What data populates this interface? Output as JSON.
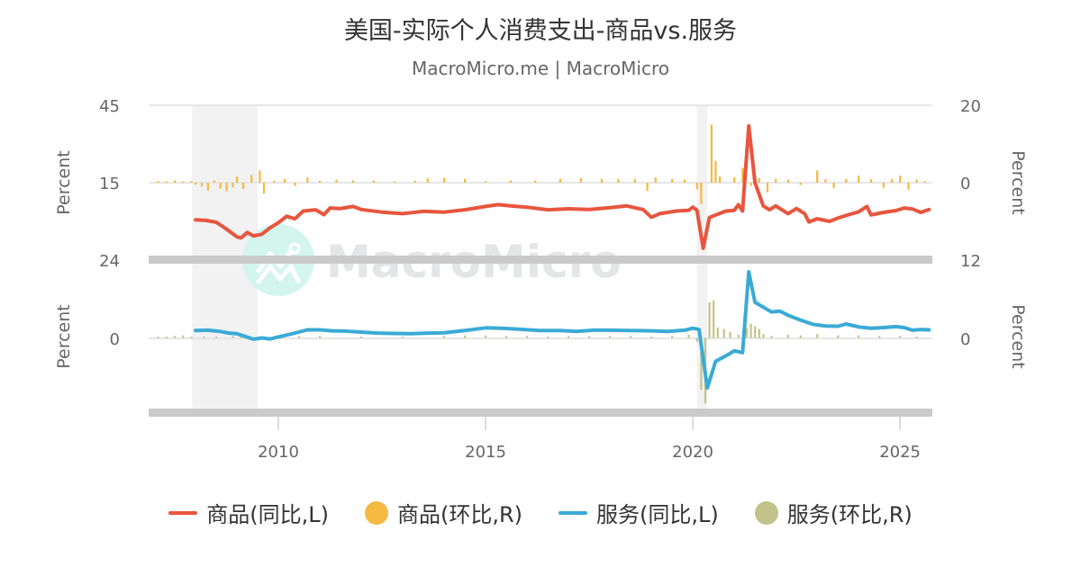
{
  "header": {
    "title": "美国-实际个人消费支出-商品vs.服务",
    "subtitle": "MacroMicro.me | MacroMicro"
  },
  "watermark": {
    "text": "MacroMicro",
    "circle_color": "#d4f5ee",
    "text_color": "#e3e5e6"
  },
  "legend": [
    {
      "label": "商品(同比,L)",
      "type": "line",
      "color": "#e8553e"
    },
    {
      "label": "商品(环比,R)",
      "type": "dot",
      "color": "#f5b941"
    },
    {
      "label": "服务(同比,L)",
      "type": "line",
      "color": "#3aaad6"
    },
    {
      "label": "服务(环比,R)",
      "type": "dot",
      "color": "#c2c38a"
    }
  ],
  "chart_data": [
    {
      "panel": "top",
      "type": "line+bar",
      "title": "美国-实际个人消费支出-商品",
      "left_axis": {
        "label": "Percent",
        "ticks": [
          "45",
          "15"
        ],
        "range": [
          -15,
          45
        ]
      },
      "right_axis": {
        "label": "Percent",
        "ticks": [
          "20",
          "0"
        ],
        "range": [
          -20,
          20
        ]
      },
      "series": [
        {
          "name": "商品(同比,L)",
          "type": "line",
          "color": "#e8553e",
          "axis": "left",
          "points": [
            [
              2008.0,
              0.6
            ],
            [
              2008.25,
              0.4
            ],
            [
              2008.5,
              -0.3
            ],
            [
              2008.75,
              -3.0
            ],
            [
              2009.0,
              -6.0
            ],
            [
              2009.1,
              -6.4
            ],
            [
              2009.25,
              -4.3
            ],
            [
              2009.4,
              -5.6
            ],
            [
              2009.6,
              -5.0
            ],
            [
              2009.8,
              -2.5
            ],
            [
              2010.0,
              -0.5
            ],
            [
              2010.2,
              2.0
            ],
            [
              2010.4,
              1.0
            ],
            [
              2010.6,
              4.0
            ],
            [
              2010.9,
              4.5
            ],
            [
              2011.1,
              2.6
            ],
            [
              2011.25,
              5.2
            ],
            [
              2011.5,
              5.0
            ],
            [
              2011.8,
              5.8
            ],
            [
              2012.0,
              4.6
            ],
            [
              2012.5,
              3.6
            ],
            [
              2013.0,
              3.0
            ],
            [
              2013.5,
              3.9
            ],
            [
              2014.0,
              3.6
            ],
            [
              2014.5,
              4.5
            ],
            [
              2015.0,
              5.8
            ],
            [
              2015.3,
              6.5
            ],
            [
              2015.6,
              6.0
            ],
            [
              2016.0,
              5.5
            ],
            [
              2016.5,
              4.5
            ],
            [
              2017.0,
              4.9
            ],
            [
              2017.5,
              4.6
            ],
            [
              2018.0,
              5.3
            ],
            [
              2018.4,
              6.0
            ],
            [
              2018.8,
              4.6
            ],
            [
              2019.0,
              1.6
            ],
            [
              2019.2,
              3.0
            ],
            [
              2019.6,
              4.0
            ],
            [
              2019.9,
              4.3
            ],
            [
              2020.0,
              5.5
            ],
            [
              2020.1,
              4.3
            ],
            [
              2020.25,
              -10.4
            ],
            [
              2020.4,
              1.5
            ],
            [
              2020.6,
              2.8
            ],
            [
              2020.8,
              4.0
            ],
            [
              2021.0,
              4.3
            ],
            [
              2021.1,
              6.5
            ],
            [
              2021.2,
              4.0
            ],
            [
              2021.35,
              37.0
            ],
            [
              2021.5,
              15.0
            ],
            [
              2021.7,
              6.0
            ],
            [
              2021.85,
              4.5
            ],
            [
              2022.0,
              6.0
            ],
            [
              2022.3,
              3.0
            ],
            [
              2022.5,
              5.0
            ],
            [
              2022.7,
              3.0
            ],
            [
              2022.8,
              -0.2
            ],
            [
              2023.0,
              1.0
            ],
            [
              2023.3,
              0.0
            ],
            [
              2023.5,
              1.3
            ],
            [
              2023.8,
              2.8
            ],
            [
              2024.0,
              3.7
            ],
            [
              2024.2,
              5.8
            ],
            [
              2024.3,
              2.5
            ],
            [
              2024.6,
              3.5
            ],
            [
              2024.9,
              4.2
            ],
            [
              2025.1,
              5.2
            ],
            [
              2025.3,
              4.8
            ],
            [
              2025.5,
              3.5
            ],
            [
              2025.7,
              4.6
            ]
          ]
        },
        {
          "name": "商品(环比,R)",
          "type": "bar",
          "color": "#f5b941",
          "axis": "right",
          "points": [
            [
              2007.1,
              0.4
            ],
            [
              2007.3,
              0.3
            ],
            [
              2007.5,
              0.6
            ],
            [
              2007.7,
              0.3
            ],
            [
              2007.9,
              0.4
            ],
            [
              2008.0,
              -0.5
            ],
            [
              2008.15,
              -1.0
            ],
            [
              2008.3,
              -2.0
            ],
            [
              2008.45,
              0.6
            ],
            [
              2008.6,
              -1.5
            ],
            [
              2008.75,
              -2.2
            ],
            [
              2008.9,
              -1.2
            ],
            [
              2009.0,
              1.6
            ],
            [
              2009.15,
              -1.6
            ],
            [
              2009.35,
              2.0
            ],
            [
              2009.55,
              3.2
            ],
            [
              2009.65,
              -2.8
            ],
            [
              2009.9,
              0.5
            ],
            [
              2010.15,
              1.0
            ],
            [
              2010.4,
              -0.8
            ],
            [
              2010.7,
              1.4
            ],
            [
              2011.0,
              0.5
            ],
            [
              2011.4,
              0.8
            ],
            [
              2011.8,
              0.6
            ],
            [
              2012.3,
              0.6
            ],
            [
              2012.8,
              0.3
            ],
            [
              2013.3,
              0.5
            ],
            [
              2013.6,
              1.2
            ],
            [
              2014.0,
              1.3
            ],
            [
              2014.5,
              1.0
            ],
            [
              2015.0,
              0.4
            ],
            [
              2015.6,
              0.6
            ],
            [
              2016.2,
              0.6
            ],
            [
              2016.8,
              1.0
            ],
            [
              2017.3,
              1.2
            ],
            [
              2017.8,
              1.0
            ],
            [
              2018.2,
              1.0
            ],
            [
              2018.6,
              1.0
            ],
            [
              2018.9,
              -2.1
            ],
            [
              2019.1,
              1.4
            ],
            [
              2019.5,
              1.0
            ],
            [
              2019.8,
              0.8
            ],
            [
              2020.1,
              -1.7
            ],
            [
              2020.2,
              -5.5
            ],
            [
              2020.45,
              15.0
            ],
            [
              2020.55,
              5.6
            ],
            [
              2020.65,
              1.6
            ],
            [
              2021.0,
              1.4
            ],
            [
              2021.2,
              3.8
            ],
            [
              2021.4,
              -0.8
            ],
            [
              2021.6,
              1.2
            ],
            [
              2021.8,
              -2.5
            ],
            [
              2022.0,
              1.0
            ],
            [
              2022.3,
              0.8
            ],
            [
              2022.6,
              -0.6
            ],
            [
              2023.0,
              3.2
            ],
            [
              2023.2,
              0.9
            ],
            [
              2023.4,
              -1.4
            ],
            [
              2023.7,
              1.0
            ],
            [
              2024.0,
              1.8
            ],
            [
              2024.3,
              0.9
            ],
            [
              2024.6,
              -1.3
            ],
            [
              2024.8,
              1.0
            ],
            [
              2025.0,
              1.8
            ],
            [
              2025.2,
              -1.8
            ],
            [
              2025.4,
              0.8
            ],
            [
              2025.6,
              0.4
            ]
          ]
        }
      ]
    },
    {
      "panel": "bottom",
      "type": "line+bar",
      "title": "美国-实际个人消费支出-服务",
      "left_axis": {
        "label": "Percent",
        "ticks": [
          "24",
          "0"
        ],
        "range": [
          -24,
          24
        ]
      },
      "right_axis": {
        "label": "Percent",
        "ticks": [
          "12",
          "0"
        ],
        "range": [
          -12,
          12
        ]
      },
      "x_axis": {
        "ticks": [
          "2010",
          "2015",
          "2020",
          "2025"
        ],
        "range": [
          2006.87,
          2025.78
        ]
      },
      "recessions": [
        [
          2007.92,
          2009.5
        ],
        [
          2020.1,
          2020.35
        ]
      ],
      "series": [
        {
          "name": "服务(同比,L)",
          "type": "line",
          "color": "#3aaad6",
          "axis": "right_hidden_left",
          "points": [
            [
              2008.0,
              2.3
            ],
            [
              2008.3,
              2.4
            ],
            [
              2008.6,
              2.0
            ],
            [
              2008.8,
              1.5
            ],
            [
              2009.0,
              1.3
            ],
            [
              2009.4,
              -0.4
            ],
            [
              2009.6,
              0.0
            ],
            [
              2009.8,
              -0.3
            ],
            [
              2010.1,
              0.6
            ],
            [
              2010.4,
              1.5
            ],
            [
              2010.7,
              2.5
            ],
            [
              2011.0,
              2.5
            ],
            [
              2011.3,
              2.2
            ],
            [
              2011.6,
              2.1
            ],
            [
              2012.0,
              1.8
            ],
            [
              2012.4,
              1.5
            ],
            [
              2012.8,
              1.4
            ],
            [
              2013.2,
              1.3
            ],
            [
              2013.6,
              1.5
            ],
            [
              2014.0,
              1.6
            ],
            [
              2014.5,
              2.3
            ],
            [
              2015.0,
              3.1
            ],
            [
              2015.4,
              3.0
            ],
            [
              2015.8,
              2.7
            ],
            [
              2016.3,
              2.3
            ],
            [
              2016.8,
              2.3
            ],
            [
              2017.2,
              2.0
            ],
            [
              2017.6,
              2.4
            ],
            [
              2018.0,
              2.4
            ],
            [
              2018.5,
              2.3
            ],
            [
              2019.0,
              2.2
            ],
            [
              2019.4,
              2.0
            ],
            [
              2019.8,
              2.4
            ],
            [
              2020.0,
              3.0
            ],
            [
              2020.15,
              2.6
            ],
            [
              2020.35,
              -15.4
            ],
            [
              2020.55,
              -7.2
            ],
            [
              2020.8,
              -5.5
            ],
            [
              2021.0,
              -4.0
            ],
            [
              2021.2,
              -4.5
            ],
            [
              2021.35,
              20.4
            ],
            [
              2021.5,
              11.0
            ],
            [
              2021.7,
              9.5
            ],
            [
              2021.9,
              8.0
            ],
            [
              2022.1,
              8.3
            ],
            [
              2022.3,
              7.0
            ],
            [
              2022.6,
              5.5
            ],
            [
              2022.9,
              4.2
            ],
            [
              2023.2,
              3.7
            ],
            [
              2023.5,
              3.6
            ],
            [
              2023.7,
              4.3
            ],
            [
              2024.0,
              3.4
            ],
            [
              2024.3,
              3.0
            ],
            [
              2024.6,
              3.2
            ],
            [
              2024.9,
              3.5
            ],
            [
              2025.1,
              3.2
            ],
            [
              2025.3,
              2.4
            ],
            [
              2025.5,
              2.6
            ],
            [
              2025.7,
              2.5
            ]
          ]
        },
        {
          "name": "服务(环比,R)",
          "type": "bar",
          "color": "#c2c38a",
          "axis": "right",
          "points": [
            [
              2007.1,
              0.2
            ],
            [
              2007.3,
              0.2
            ],
            [
              2007.5,
              0.3
            ],
            [
              2007.7,
              0.4
            ],
            [
              2007.9,
              0.2
            ],
            [
              2008.2,
              0.2
            ],
            [
              2008.5,
              0.2
            ],
            [
              2008.9,
              0.3
            ],
            [
              2009.1,
              0.3
            ],
            [
              2009.6,
              0.2
            ],
            [
              2010.0,
              0.4
            ],
            [
              2010.5,
              0.3
            ],
            [
              2011.0,
              0.3
            ],
            [
              2012.0,
              0.2
            ],
            [
              2013.0,
              0.2
            ],
            [
              2014.0,
              0.3
            ],
            [
              2014.5,
              0.4
            ],
            [
              2015.0,
              0.4
            ],
            [
              2015.5,
              0.3
            ],
            [
              2016.0,
              0.3
            ],
            [
              2016.5,
              0.2
            ],
            [
              2017.0,
              0.3
            ],
            [
              2017.5,
              0.3
            ],
            [
              2018.0,
              0.3
            ],
            [
              2018.5,
              0.3
            ],
            [
              2019.0,
              0.2
            ],
            [
              2019.5,
              0.3
            ],
            [
              2019.9,
              0.5
            ],
            [
              2020.1,
              -0.6
            ],
            [
              2020.2,
              -8.0
            ],
            [
              2020.3,
              -10.1
            ],
            [
              2020.4,
              5.5
            ],
            [
              2020.5,
              5.8
            ],
            [
              2020.6,
              1.6
            ],
            [
              2020.75,
              1.4
            ],
            [
              2020.9,
              0.9
            ],
            [
              2021.1,
              0.5
            ],
            [
              2021.3,
              1.5
            ],
            [
              2021.4,
              2.2
            ],
            [
              2021.5,
              1.8
            ],
            [
              2021.6,
              1.4
            ],
            [
              2021.7,
              0.6
            ],
            [
              2021.9,
              0.3
            ],
            [
              2022.3,
              0.5
            ],
            [
              2022.6,
              0.4
            ],
            [
              2023.0,
              0.6
            ],
            [
              2023.5,
              0.4
            ],
            [
              2024.0,
              0.4
            ],
            [
              2024.5,
              0.3
            ],
            [
              2025.0,
              0.3
            ],
            [
              2025.4,
              0.2
            ]
          ]
        }
      ]
    }
  ]
}
